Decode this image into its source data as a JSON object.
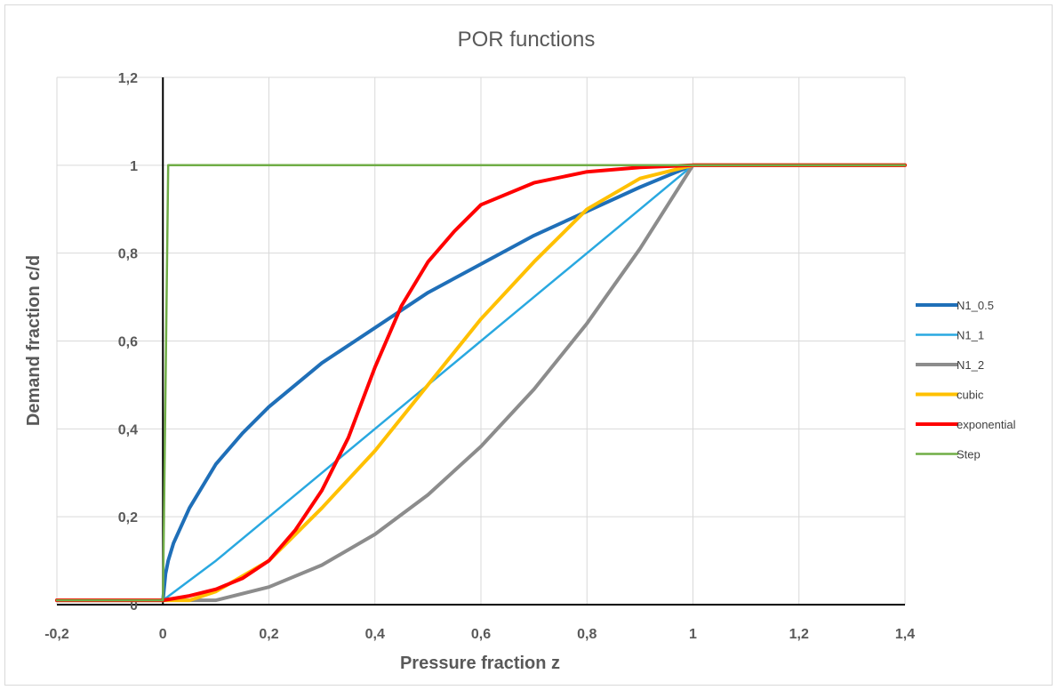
{
  "chart_data": {
    "type": "line",
    "title": "POR functions",
    "xlabel": "Pressure fraction z",
    "ylabel": "Demand fraction c/d",
    "xlim": [
      -0.2,
      1.4
    ],
    "ylim": [
      0,
      1.2
    ],
    "x_ticks": [
      "-0,2",
      "0",
      "0,2",
      "0,4",
      "0,6",
      "0,8",
      "1",
      "1,2",
      "1,4"
    ],
    "y_ticks": [
      "0",
      "0,2",
      "0,4",
      "0,6",
      "0,8",
      "1",
      "1,2"
    ],
    "grid": true,
    "legend_position": "right",
    "series": [
      {
        "name": "N1_0.5",
        "color": "#1f6fb8",
        "points": [
          [
            -0.2,
            0.01
          ],
          [
            0,
            0.01
          ],
          [
            0.005,
            0.07
          ],
          [
            0.01,
            0.1
          ],
          [
            0.02,
            0.14
          ],
          [
            0.05,
            0.22
          ],
          [
            0.1,
            0.32
          ],
          [
            0.15,
            0.39
          ],
          [
            0.2,
            0.45
          ],
          [
            0.3,
            0.55
          ],
          [
            0.4,
            0.63
          ],
          [
            0.5,
            0.71
          ],
          [
            0.6,
            0.775
          ],
          [
            0.7,
            0.84
          ],
          [
            0.8,
            0.895
          ],
          [
            0.9,
            0.95
          ],
          [
            1,
            1
          ],
          [
            1.4,
            1
          ]
        ]
      },
      {
        "name": "N1_1",
        "color": "#29a8e0",
        "points": [
          [
            -0.2,
            0.01
          ],
          [
            0,
            0.01
          ],
          [
            0.1,
            0.1
          ],
          [
            0.2,
            0.2
          ],
          [
            0.3,
            0.3
          ],
          [
            0.4,
            0.4
          ],
          [
            0.5,
            0.5
          ],
          [
            0.6,
            0.6
          ],
          [
            0.7,
            0.7
          ],
          [
            0.8,
            0.8
          ],
          [
            0.9,
            0.9
          ],
          [
            1,
            1
          ],
          [
            1.4,
            1
          ]
        ]
      },
      {
        "name": "N1_2",
        "color": "#8c8c8c",
        "points": [
          [
            -0.2,
            0.01
          ],
          [
            0,
            0.01
          ],
          [
            0.1,
            0.01
          ],
          [
            0.2,
            0.04
          ],
          [
            0.3,
            0.09
          ],
          [
            0.4,
            0.16
          ],
          [
            0.5,
            0.25
          ],
          [
            0.6,
            0.36
          ],
          [
            0.7,
            0.49
          ],
          [
            0.8,
            0.64
          ],
          [
            0.9,
            0.81
          ],
          [
            1,
            1
          ],
          [
            1.4,
            1
          ]
        ]
      },
      {
        "name": "cubic",
        "color": "#ffc000",
        "points": [
          [
            -0.2,
            0.01
          ],
          [
            0,
            0.01
          ],
          [
            0.05,
            0.01
          ],
          [
            0.1,
            0.03
          ],
          [
            0.2,
            0.1
          ],
          [
            0.3,
            0.22
          ],
          [
            0.4,
            0.35
          ],
          [
            0.5,
            0.5
          ],
          [
            0.6,
            0.65
          ],
          [
            0.7,
            0.78
          ],
          [
            0.8,
            0.9
          ],
          [
            0.9,
            0.97
          ],
          [
            1,
            1
          ],
          [
            1.4,
            1
          ]
        ]
      },
      {
        "name": "exponential",
        "color": "#ff0000",
        "points": [
          [
            -0.2,
            0.01
          ],
          [
            0,
            0.01
          ],
          [
            0.05,
            0.02
          ],
          [
            0.1,
            0.035
          ],
          [
            0.15,
            0.06
          ],
          [
            0.2,
            0.1
          ],
          [
            0.25,
            0.17
          ],
          [
            0.3,
            0.26
          ],
          [
            0.35,
            0.38
          ],
          [
            0.4,
            0.54
          ],
          [
            0.45,
            0.68
          ],
          [
            0.5,
            0.78
          ],
          [
            0.55,
            0.85
          ],
          [
            0.6,
            0.91
          ],
          [
            0.7,
            0.96
          ],
          [
            0.8,
            0.985
          ],
          [
            0.9,
            0.995
          ],
          [
            1,
            1
          ],
          [
            1.4,
            1
          ]
        ]
      },
      {
        "name": "Step",
        "color": "#70ad47",
        "points": [
          [
            -0.2,
            0.01
          ],
          [
            0,
            0.01
          ],
          [
            0.01,
            1
          ],
          [
            1,
            1
          ],
          [
            1.4,
            1
          ]
        ]
      }
    ]
  }
}
